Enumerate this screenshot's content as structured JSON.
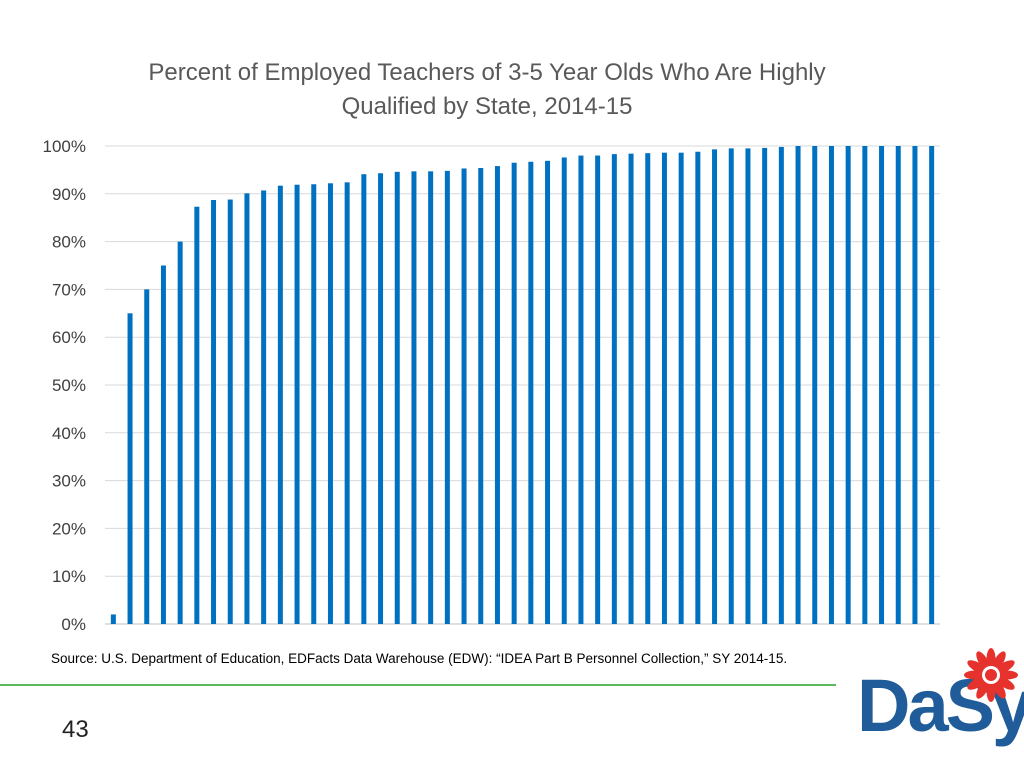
{
  "chart_data": {
    "type": "bar",
    "title_line1": "Percent of  Employed Teachers of 3-5 Year Olds Who Are Highly",
    "title_line2": "Qualified by State, 2014-15",
    "xlabel": "",
    "ylabel": "",
    "ylim": [
      0,
      100
    ],
    "yticks": [
      "0%",
      "10%",
      "20%",
      "30%",
      "40%",
      "50%",
      "60%",
      "70%",
      "80%",
      "90%",
      "100%"
    ],
    "grid": true,
    "legend": "none",
    "bar_color": "#0070c0",
    "values": [
      2,
      65,
      70,
      75,
      80,
      87.3,
      88.7,
      88.8,
      90.1,
      90.7,
      91.7,
      91.9,
      92.0,
      92.2,
      92.4,
      94.1,
      94.3,
      94.6,
      94.7,
      94.7,
      94.8,
      95.3,
      95.4,
      95.8,
      96.5,
      96.7,
      96.9,
      97.6,
      98.0,
      98.0,
      98.3,
      98.4,
      98.5,
      98.6,
      98.6,
      98.8,
      99.3,
      99.5,
      99.5,
      99.6,
      99.8,
      100,
      100,
      100,
      100,
      100,
      100,
      100,
      100,
      100
    ]
  },
  "footer": {
    "source": "Source: U.S. Department of Education, EDFacts Data Warehouse (EDW): “IDEA Part B Personnel Collection,” SY 2014-15.",
    "page_number": "43"
  },
  "logo": {
    "text": "DaSy",
    "text_color": "#1f5c99",
    "flower_color": "#e5322d",
    "accent_color": "#5cb85c"
  }
}
